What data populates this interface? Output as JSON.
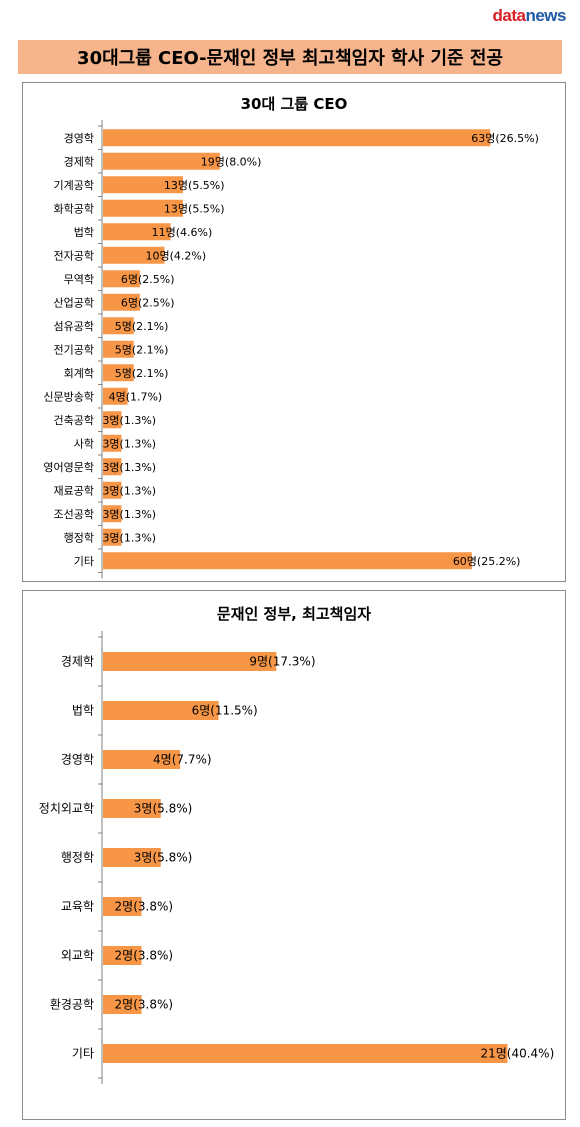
{
  "header": {
    "logo_part1": "data",
    "logo_part2": "news",
    "title": "30대그룹 CEO-문재인 정부 최고책임자 학사 기준 전공"
  },
  "colors": {
    "bar": "#f79646",
    "title_bg": "#f5b48b",
    "axis": "#808080"
  },
  "chart_data": [
    {
      "type": "bar",
      "orientation": "horizontal",
      "title": "30대 그룹 CEO",
      "categories": [
        "경영학",
        "경제학",
        "기계공학",
        "화학공학",
        "법학",
        "전자공학",
        "무역학",
        "산업공학",
        "섬유공학",
        "전기공학",
        "회계학",
        "신문방송학",
        "건축공학",
        "사학",
        "영어영문학",
        "재료공학",
        "조선공학",
        "행정학",
        "기타"
      ],
      "values": [
        63,
        19,
        13,
        13,
        11,
        10,
        6,
        6,
        5,
        5,
        5,
        4,
        3,
        3,
        3,
        3,
        3,
        3,
        60
      ],
      "data_labels": [
        "63명(26.5%)",
        "19명(8.0%)",
        "13명(5.5%)",
        "13명(5.5%)",
        "11명(4.6%)",
        "10명(4.2%)",
        "6명(2.5%)",
        "6명(2.5%)",
        "5명(2.1%)",
        "5명(2.1%)",
        "5명(2.1%)",
        "4명(1.7%)",
        "3명(1.3%)",
        "3명(1.3%)",
        "3명(1.3%)",
        "3명(1.3%)",
        "3명(1.3%)",
        "3명(1.3%)",
        "60명(25.2%)"
      ],
      "xlim": [
        0,
        68
      ]
    },
    {
      "type": "bar",
      "orientation": "horizontal",
      "title": "문재인 정부, 최고책임자",
      "categories": [
        "경제학",
        "법학",
        "경영학",
        "정치외교학",
        "행정학",
        "교육학",
        "외교학",
        "환경공학",
        "기타"
      ],
      "values": [
        9,
        6,
        4,
        3,
        3,
        2,
        2,
        2,
        21
      ],
      "data_labels": [
        "9명(17.3%)",
        "6명(11.5%)",
        "4명(7.7%)",
        "3명(5.8%)",
        "3명(5.8%)",
        "2명(3.8%)",
        "2명(3.8%)",
        "2명(3.8%)",
        "21명(40.4%)"
      ],
      "xlim": [
        0,
        23
      ]
    }
  ]
}
